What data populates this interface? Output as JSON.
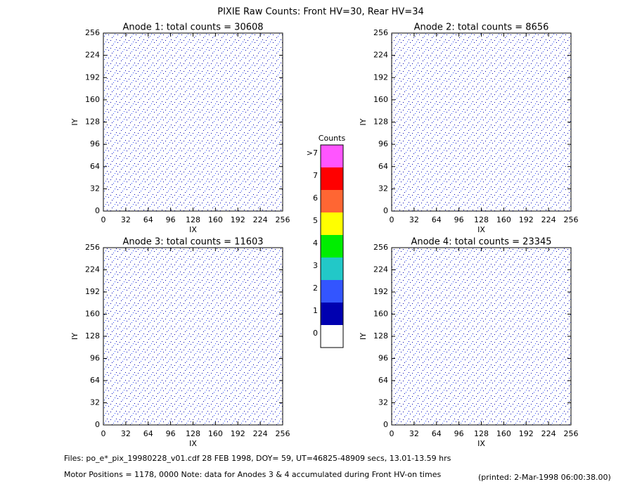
{
  "title": "PIXIE Raw Counts:  Front HV=30, Rear HV=34",
  "chart_data": [
    {
      "type": "heatmap",
      "title": "Anode 1: total counts = 30608",
      "x_label": "IX",
      "y_label": "IY",
      "xlim": [
        0,
        256
      ],
      "ylim": [
        0,
        256
      ],
      "xticks": [
        0,
        32,
        64,
        96,
        128,
        160,
        192,
        224,
        256
      ],
      "yticks": [
        0,
        32,
        64,
        96,
        128,
        160,
        192,
        224,
        256
      ]
    },
    {
      "type": "heatmap",
      "title": "Anode 2: total counts = 8656",
      "x_label": "IX",
      "y_label": "IY",
      "xlim": [
        0,
        256
      ],
      "ylim": [
        0,
        256
      ],
      "xticks": [
        0,
        32,
        64,
        96,
        128,
        160,
        192,
        224,
        256
      ],
      "yticks": [
        0,
        32,
        64,
        96,
        128,
        160,
        192,
        224,
        256
      ]
    },
    {
      "type": "heatmap",
      "title": "Anode 3: total counts = 11603",
      "x_label": "IX",
      "y_label": "IY",
      "xlim": [
        0,
        256
      ],
      "ylim": [
        0,
        256
      ],
      "xticks": [
        0,
        32,
        64,
        96,
        128,
        160,
        192,
        224,
        256
      ],
      "yticks": [
        0,
        32,
        64,
        96,
        128,
        160,
        192,
        224,
        256
      ]
    },
    {
      "type": "heatmap",
      "title": "Anode 4: total counts = 23345",
      "x_label": "IX",
      "y_label": "IY",
      "xlim": [
        0,
        256
      ],
      "ylim": [
        0,
        256
      ],
      "xticks": [
        0,
        32,
        64,
        96,
        128,
        160,
        192,
        224,
        256
      ],
      "yticks": [
        0,
        32,
        64,
        96,
        128,
        160,
        192,
        224,
        256
      ]
    }
  ],
  "colorbar": {
    "title": "Counts",
    "levels": [
      {
        "label": "0",
        "color": "#ffffff"
      },
      {
        "label": "1",
        "color": "#0000b0"
      },
      {
        "label": "2",
        "color": "#3355ff"
      },
      {
        "label": "3",
        "color": "#22c8c8"
      },
      {
        "label": "4",
        "color": "#00ee00"
      },
      {
        "label": "5",
        "color": "#ffff00"
      },
      {
        "label": "6",
        "color": "#ff6633"
      },
      {
        "label": "7",
        "color": "#ff0000"
      },
      {
        "label": ">7",
        "color": "#ff55ff"
      }
    ]
  },
  "footer": {
    "files": "Files: po_e*_pix_19980228_v01.cdf    28 FEB 1998, DOY= 59, UT=46825-48909 secs, 13.01-13.59 hrs",
    "motor": "Motor Positions = 1178, 0000    Note: data for Anodes 3 & 4 accumulated during Front HV-on times",
    "printed": "(printed:  2-Mar-1998 06:00:38.00)"
  }
}
